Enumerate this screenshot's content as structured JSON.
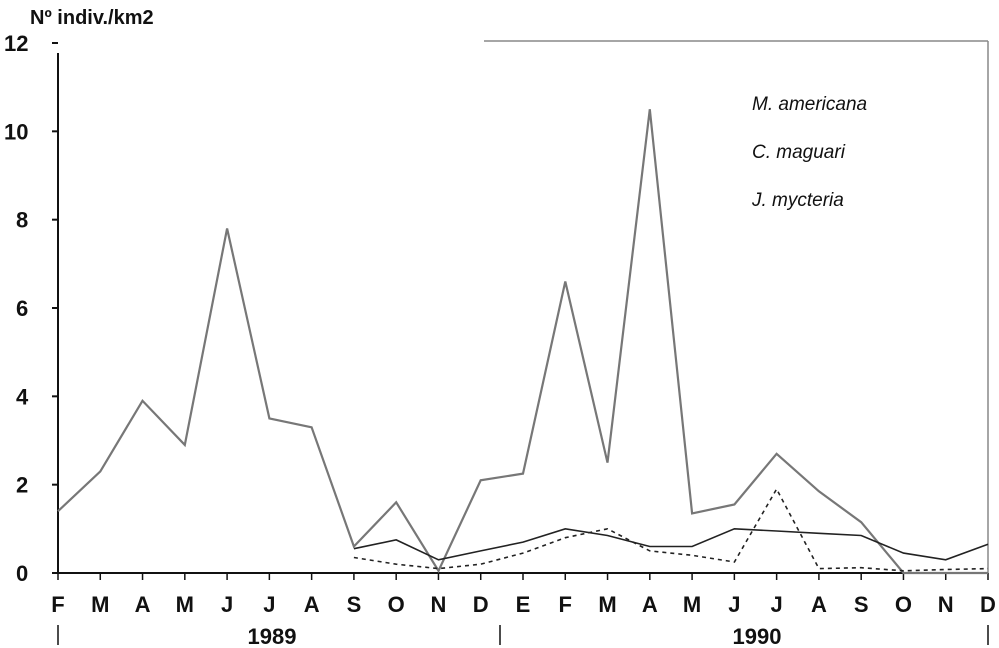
{
  "chart_data": {
    "type": "line",
    "ylabel": "Nº indiv./km2",
    "ylim": [
      0,
      12
    ],
    "yticks": [
      0,
      2,
      4,
      6,
      8,
      10,
      12
    ],
    "categories": [
      "F",
      "M",
      "A",
      "M",
      "J",
      "J",
      "A",
      "S",
      "O",
      "N",
      "D",
      "E",
      "F",
      "M",
      "A",
      "M",
      "J",
      "J",
      "A",
      "S",
      "O",
      "N",
      "D"
    ],
    "year_labels": [
      "1989",
      "1990"
    ],
    "legend_position": "top-right",
    "grid": false,
    "series": [
      {
        "name": "M. americana",
        "color": "#777777",
        "dash": "solid",
        "values": [
          1.4,
          2.3,
          3.9,
          2.9,
          7.8,
          3.5,
          3.3,
          0.6,
          1.6,
          0.05,
          2.1,
          2.25,
          6.6,
          2.5,
          10.5,
          1.35,
          1.55,
          2.7,
          1.85,
          1.15,
          0.0,
          0.0,
          0.0
        ]
      },
      {
        "name": "C. maguari",
        "color": "#222222",
        "dash": "solid",
        "values": [
          null,
          null,
          null,
          null,
          null,
          null,
          null,
          0.55,
          0.75,
          0.3,
          0.5,
          0.7,
          1.0,
          0.85,
          0.6,
          0.6,
          1.0,
          0.95,
          0.9,
          0.85,
          0.45,
          0.3,
          0.65
        ]
      },
      {
        "name": "J. mycteria",
        "color": "#222222",
        "dash": "4,4",
        "values": [
          null,
          null,
          null,
          null,
          null,
          null,
          null,
          0.35,
          0.2,
          0.1,
          0.2,
          0.45,
          0.8,
          1.0,
          0.5,
          0.4,
          0.25,
          1.9,
          0.1,
          0.12,
          0.05,
          0.08,
          0.1
        ]
      }
    ]
  }
}
